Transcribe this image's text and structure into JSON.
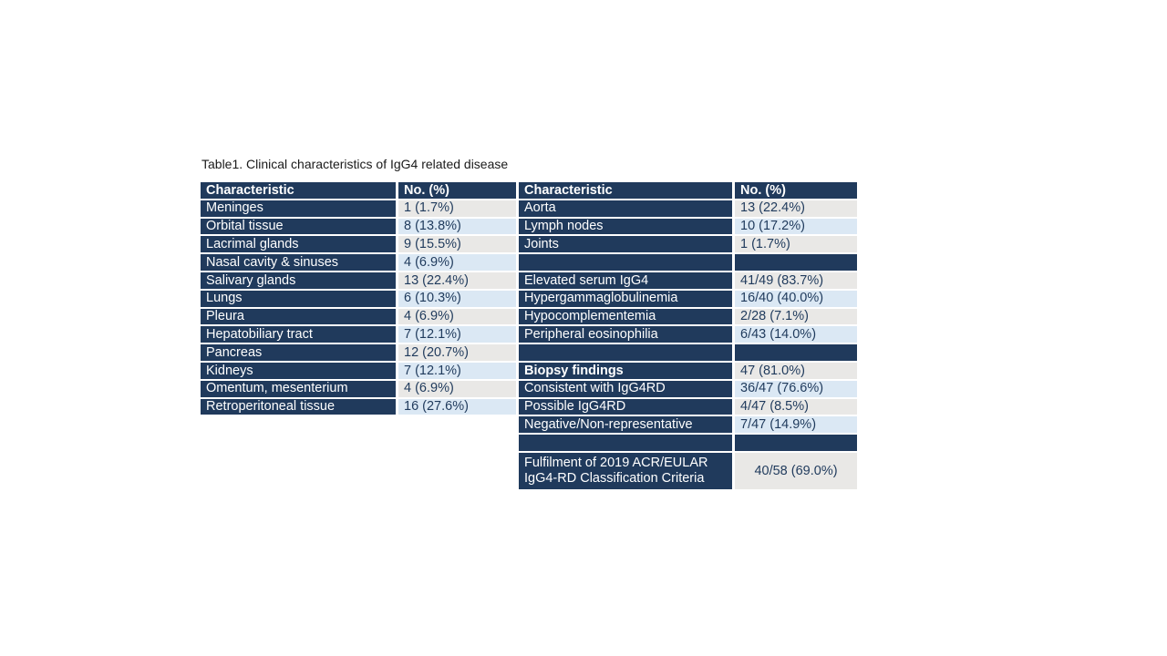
{
  "title": "Table1. Clinical characteristics of IgG4 related disease",
  "colors": {
    "header_bg": "#203a5c",
    "label_bg": "#203a5c",
    "value_alt_gray_bg": "#e9e8e6",
    "value_alt_blue_bg": "#dbe8f4",
    "value_text": "#1f3a5c",
    "header_text": "#ffffff",
    "grid": "#ffffff"
  },
  "left_table": {
    "headers": {
      "characteristic": "Characteristic",
      "value": "No. (%)"
    },
    "rows": [
      {
        "label": "Meninges",
        "value": "1 (1.7%)"
      },
      {
        "label": "Orbital tissue",
        "value": "8 (13.8%)"
      },
      {
        "label": "Lacrimal glands",
        "value": "9 (15.5%)"
      },
      {
        "label": "Nasal cavity & sinuses",
        "value": "4 (6.9%)"
      },
      {
        "label": "Salivary glands",
        "value": "13 (22.4%)"
      },
      {
        "label": "Lungs",
        "value": "6 (10.3%)"
      },
      {
        "label": "Pleura",
        "value": "4 (6.9%)"
      },
      {
        "label": "Hepatobiliary tract",
        "value": "7 (12.1%)"
      },
      {
        "label": "Pancreas",
        "value": "12 (20.7%)"
      },
      {
        "label": "Kidneys",
        "value": "7 (12.1%)"
      },
      {
        "label": "Omentum, mesenterium",
        "value": "4 (6.9%)"
      },
      {
        "label": "Retroperitoneal tissue",
        "value": "16 (27.6%)"
      }
    ]
  },
  "right_table": {
    "headers": {
      "characteristic": "Characteristic",
      "value": "No. (%)"
    },
    "rows": [
      {
        "label": "Aorta",
        "value": "13 (22.4%)"
      },
      {
        "label": "Lymph nodes",
        "value": "10 (17.2%)"
      },
      {
        "label": "Joints",
        "value": "1 (1.7%)"
      },
      {
        "label": "",
        "value": ""
      },
      {
        "label": "Elevated serum IgG4",
        "value": "41/49 (83.7%)"
      },
      {
        "label": "Hypergammaglobulinemia",
        "value": "16/40 (40.0%)"
      },
      {
        "label": "Hypocomplementemia",
        "value": "2/28 (7.1%)"
      },
      {
        "label": "Peripheral eosinophilia",
        "value": "6/43 (14.0%)"
      },
      {
        "label": "",
        "value": ""
      },
      {
        "label": "Biopsy findings",
        "value": "47 (81.0%)"
      },
      {
        "label": "Consistent with IgG4RD",
        "value": "36/47 (76.6%)"
      },
      {
        "label": "Possible IgG4RD",
        "value": "4/47 (8.5%)"
      },
      {
        "label": "Negative/Non-representative",
        "value": "7/47 (14.9%)"
      },
      {
        "label": "",
        "value": ""
      },
      {
        "label": "Fulfilment of 2019 ACR/EULAR IgG4-RD Classification Criteria",
        "value": "40/58 (69.0%)"
      }
    ]
  }
}
